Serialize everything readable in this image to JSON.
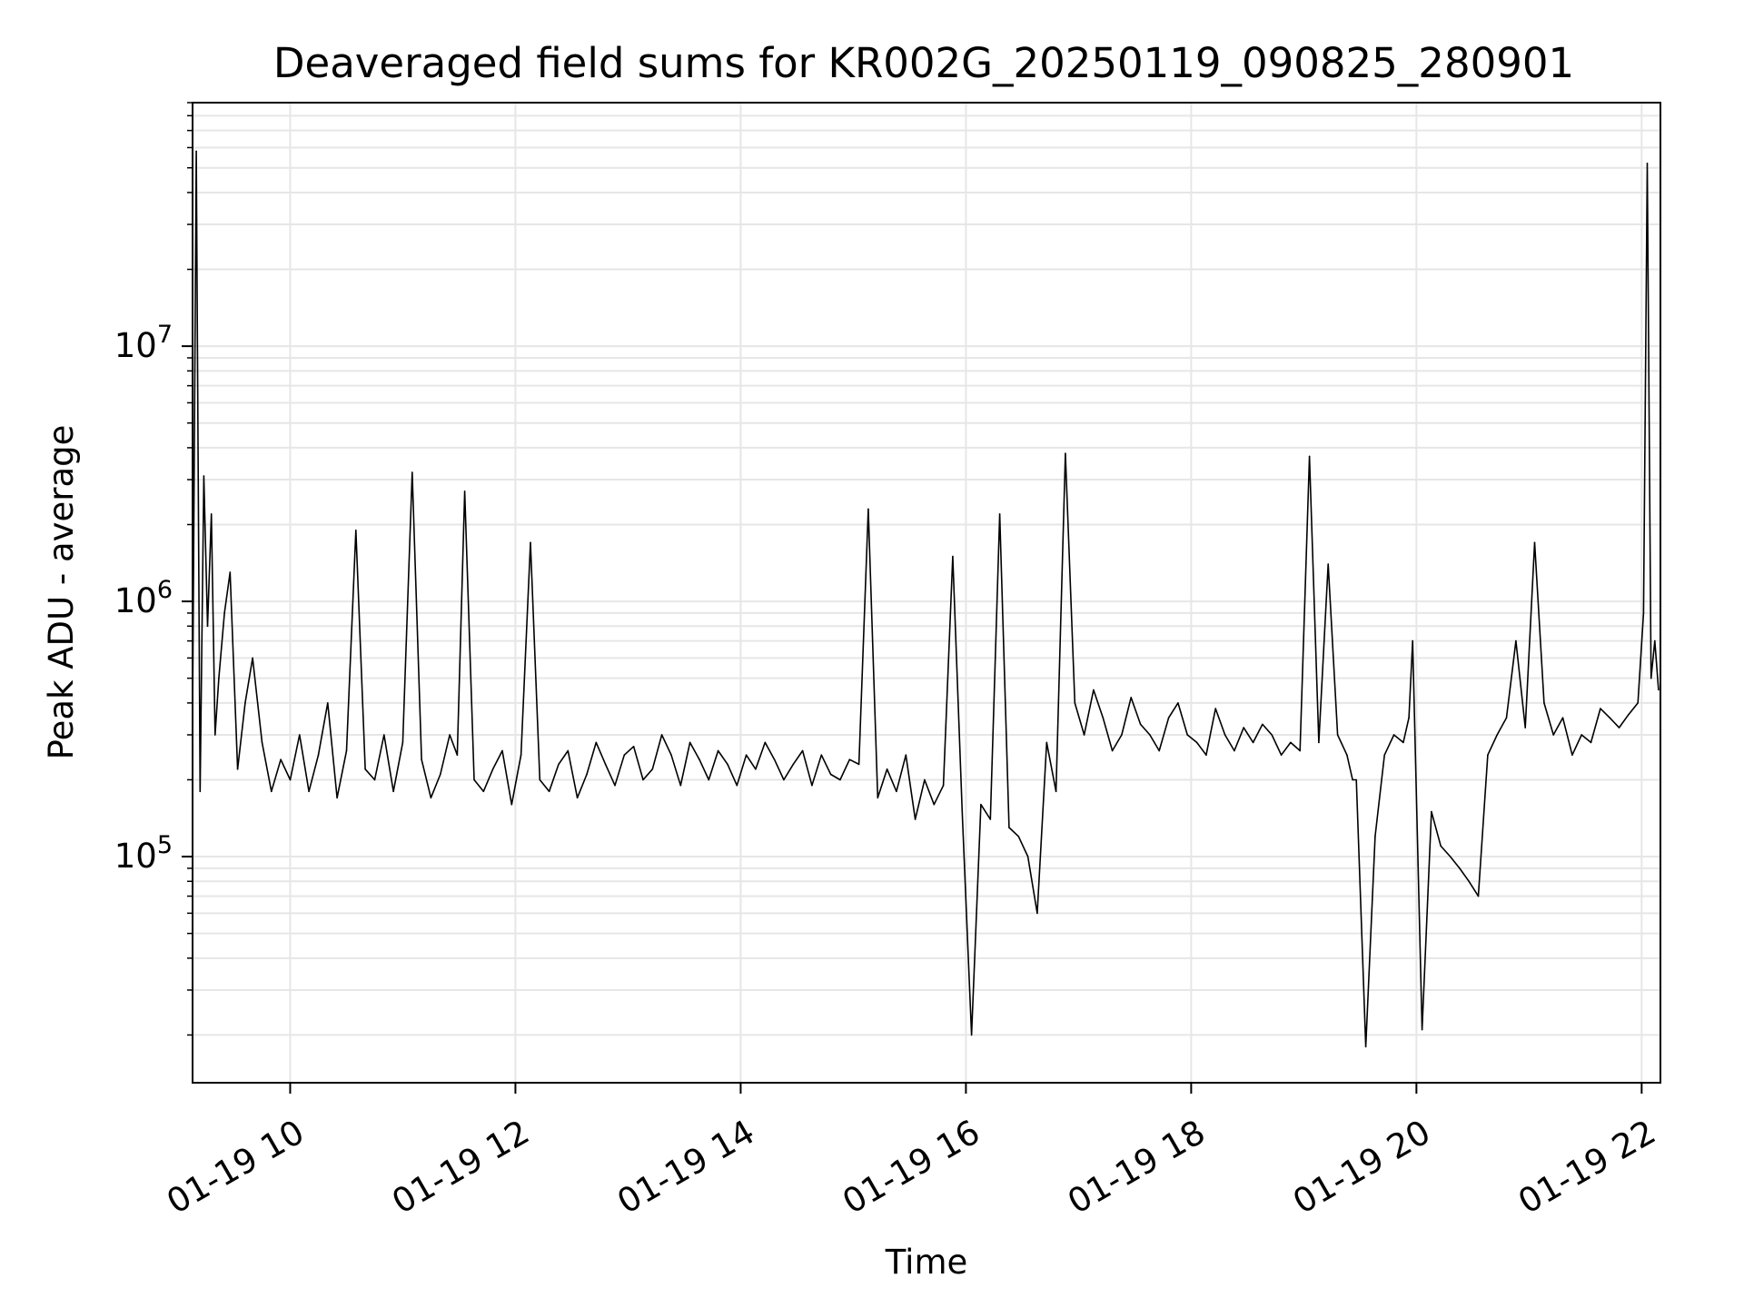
{
  "chart_data": {
    "type": "line",
    "title": "Deaveraged field sums for KR002G_20250119_090825_280901",
    "xlabel": "Time",
    "ylabel": "Peak ADU - average",
    "yscale": "log",
    "ylim": [
      13000,
      90000000
    ],
    "xlim": [
      "2025-01-19 09:08",
      "2025-01-19 22:10"
    ],
    "grid": true,
    "series_color": "#000000",
    "x_ticks": [
      {
        "label": "01-19 10",
        "t": "2025-01-19 10:00"
      },
      {
        "label": "01-19 12",
        "t": "2025-01-19 12:00"
      },
      {
        "label": "01-19 14",
        "t": "2025-01-19 14:00"
      },
      {
        "label": "01-19 16",
        "t": "2025-01-19 16:00"
      },
      {
        "label": "01-19 18",
        "t": "2025-01-19 18:00"
      },
      {
        "label": "01-19 20",
        "t": "2025-01-19 20:00"
      },
      {
        "label": "01-19 22",
        "t": "2025-01-19 22:00"
      }
    ],
    "y_ticks": [
      {
        "base": "10",
        "exp": "5",
        "value": 100000
      },
      {
        "base": "10",
        "exp": "6",
        "value": 1000000
      },
      {
        "base": "10",
        "exp": "7",
        "value": 10000000
      }
    ],
    "series": [
      {
        "x": [
          "2025-01-19 09:08",
          "2025-01-19 09:10",
          "2025-01-19 09:12",
          "2025-01-19 09:14",
          "2025-01-19 09:16",
          "2025-01-19 09:18",
          "2025-01-19 09:20",
          "2025-01-19 09:22",
          "2025-01-19 09:25",
          "2025-01-19 09:28",
          "2025-01-19 09:32",
          "2025-01-19 09:36",
          "2025-01-19 09:40",
          "2025-01-19 09:45",
          "2025-01-19 09:50",
          "2025-01-19 09:55",
          "2025-01-19 10:00",
          "2025-01-19 10:05",
          "2025-01-19 10:10",
          "2025-01-19 10:15",
          "2025-01-19 10:20",
          "2025-01-19 10:25",
          "2025-01-19 10:30",
          "2025-01-19 10:35",
          "2025-01-19 10:40",
          "2025-01-19 10:45",
          "2025-01-19 10:50",
          "2025-01-19 10:55",
          "2025-01-19 11:00",
          "2025-01-19 11:05",
          "2025-01-19 11:10",
          "2025-01-19 11:15",
          "2025-01-19 11:20",
          "2025-01-19 11:25",
          "2025-01-19 11:29",
          "2025-01-19 11:33",
          "2025-01-19 11:38",
          "2025-01-19 11:43",
          "2025-01-19 11:48",
          "2025-01-19 11:53",
          "2025-01-19 11:58",
          "2025-01-19 12:03",
          "2025-01-19 12:08",
          "2025-01-19 12:13",
          "2025-01-19 12:18",
          "2025-01-19 12:23",
          "2025-01-19 12:28",
          "2025-01-19 12:33",
          "2025-01-19 12:38",
          "2025-01-19 12:43",
          "2025-01-19 12:48",
          "2025-01-19 12:53",
          "2025-01-19 12:58",
          "2025-01-19 13:03",
          "2025-01-19 13:08",
          "2025-01-19 13:13",
          "2025-01-19 13:18",
          "2025-01-19 13:23",
          "2025-01-19 13:28",
          "2025-01-19 13:33",
          "2025-01-19 13:38",
          "2025-01-19 13:43",
          "2025-01-19 13:48",
          "2025-01-19 13:53",
          "2025-01-19 13:58",
          "2025-01-19 14:03",
          "2025-01-19 14:08",
          "2025-01-19 14:13",
          "2025-01-19 14:18",
          "2025-01-19 14:23",
          "2025-01-19 14:28",
          "2025-01-19 14:33",
          "2025-01-19 14:38",
          "2025-01-19 14:43",
          "2025-01-19 14:48",
          "2025-01-19 14:53",
          "2025-01-19 14:58",
          "2025-01-19 15:03",
          "2025-01-19 15:08",
          "2025-01-19 15:13",
          "2025-01-19 15:18",
          "2025-01-19 15:23",
          "2025-01-19 15:28",
          "2025-01-19 15:33",
          "2025-01-19 15:38",
          "2025-01-19 15:43",
          "2025-01-19 15:48",
          "2025-01-19 15:53",
          "2025-01-19 15:58",
          "2025-01-19 16:03",
          "2025-01-19 16:08",
          "2025-01-19 16:13",
          "2025-01-19 16:18",
          "2025-01-19 16:23",
          "2025-01-19 16:28",
          "2025-01-19 16:33",
          "2025-01-19 16:38",
          "2025-01-19 16:43",
          "2025-01-19 16:48",
          "2025-01-19 16:53",
          "2025-01-19 16:58",
          "2025-01-19 17:03",
          "2025-01-19 17:08",
          "2025-01-19 17:13",
          "2025-01-19 17:18",
          "2025-01-19 17:23",
          "2025-01-19 17:28",
          "2025-01-19 17:33",
          "2025-01-19 17:38",
          "2025-01-19 17:43",
          "2025-01-19 17:48",
          "2025-01-19 17:53",
          "2025-01-19 17:58",
          "2025-01-19 18:03",
          "2025-01-19 18:08",
          "2025-01-19 18:13",
          "2025-01-19 18:18",
          "2025-01-19 18:23",
          "2025-01-19 18:28",
          "2025-01-19 18:33",
          "2025-01-19 18:38",
          "2025-01-19 18:43",
          "2025-01-19 18:48",
          "2025-01-19 18:53",
          "2025-01-19 18:58",
          "2025-01-19 19:03",
          "2025-01-19 19:08",
          "2025-01-19 19:13",
          "2025-01-19 19:18",
          "2025-01-19 19:23",
          "2025-01-19 19:26",
          "2025-01-19 19:28",
          "2025-01-19 19:33",
          "2025-01-19 19:38",
          "2025-01-19 19:43",
          "2025-01-19 19:48",
          "2025-01-19 19:53",
          "2025-01-19 19:56",
          "2025-01-19 19:58",
          "2025-01-19 20:03",
          "2025-01-19 20:08",
          "2025-01-19 20:13",
          "2025-01-19 20:18",
          "2025-01-19 20:23",
          "2025-01-19 20:28",
          "2025-01-19 20:33",
          "2025-01-19 20:38",
          "2025-01-19 20:43",
          "2025-01-19 20:48",
          "2025-01-19 20:53",
          "2025-01-19 20:58",
          "2025-01-19 21:03",
          "2025-01-19 21:08",
          "2025-01-19 21:13",
          "2025-01-19 21:18",
          "2025-01-19 21:23",
          "2025-01-19 21:28",
          "2025-01-19 21:33",
          "2025-01-19 21:38",
          "2025-01-19 21:43",
          "2025-01-19 21:48",
          "2025-01-19 21:53",
          "2025-01-19 21:58",
          "2025-01-19 22:01",
          "2025-01-19 22:03",
          "2025-01-19 22:05",
          "2025-01-19 22:07",
          "2025-01-19 22:09"
        ],
        "y": [
          350000,
          58000000,
          180000,
          3100000,
          800000,
          2200000,
          300000,
          500000,
          900000,
          1300000,
          220000,
          400000,
          600000,
          280000,
          180000,
          240000,
          200000,
          300000,
          180000,
          250000,
          400000,
          170000,
          260000,
          1900000,
          220000,
          200000,
          300000,
          180000,
          280000,
          3200000,
          240000,
          170000,
          210000,
          300000,
          250000,
          2700000,
          200000,
          180000,
          220000,
          260000,
          160000,
          250000,
          1700000,
          200000,
          180000,
          230000,
          260000,
          170000,
          210000,
          280000,
          230000,
          190000,
          250000,
          270000,
          200000,
          220000,
          300000,
          250000,
          190000,
          280000,
          240000,
          200000,
          260000,
          230000,
          190000,
          250000,
          220000,
          280000,
          240000,
          200000,
          230000,
          260000,
          190000,
          250000,
          210000,
          200000,
          240000,
          230000,
          2300000,
          170000,
          220000,
          180000,
          250000,
          140000,
          200000,
          160000,
          190000,
          1500000,
          150000,
          20000,
          160000,
          140000,
          2200000,
          130000,
          120000,
          100000,
          60000,
          280000,
          180000,
          3800000,
          400000,
          300000,
          450000,
          350000,
          260000,
          300000,
          420000,
          330000,
          300000,
          260000,
          350000,
          400000,
          300000,
          280000,
          250000,
          380000,
          300000,
          260000,
          320000,
          280000,
          330000,
          300000,
          250000,
          280000,
          260000,
          3700000,
          280000,
          1400000,
          300000,
          250000,
          200000,
          200000,
          18000,
          120000,
          250000,
          300000,
          280000,
          350000,
          700000,
          21000,
          150000,
          110000,
          100000,
          90000,
          80000,
          70000,
          250000,
          300000,
          350000,
          700000,
          320000,
          1700000,
          400000,
          300000,
          350000,
          250000,
          300000,
          280000,
          380000,
          350000,
          320000,
          360000,
          400000,
          900000,
          52000000,
          500000,
          700000,
          450000
        ]
      }
    ]
  }
}
